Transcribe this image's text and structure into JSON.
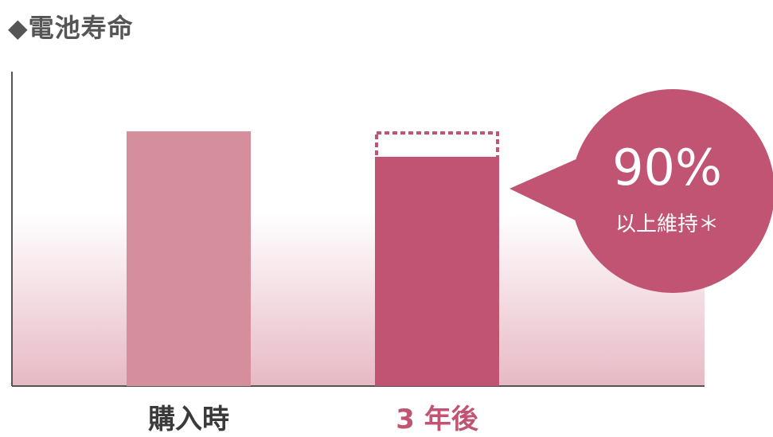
{
  "chart_data": {
    "type": "bar",
    "title": "◆電池寿命",
    "categories": [
      "購入時",
      "3 年後"
    ],
    "values": [
      100,
      90
    ],
    "ylim": [
      0,
      100
    ],
    "callout": {
      "value": "90%",
      "note": "以上維持＊"
    },
    "colors": {
      "bar_initial": "#d48e9c",
      "bar_after": "#c15472",
      "label_initial": "#3a3a3a",
      "label_after": "#c15472",
      "background_gradient_bottom": "#e7b9c5"
    }
  }
}
